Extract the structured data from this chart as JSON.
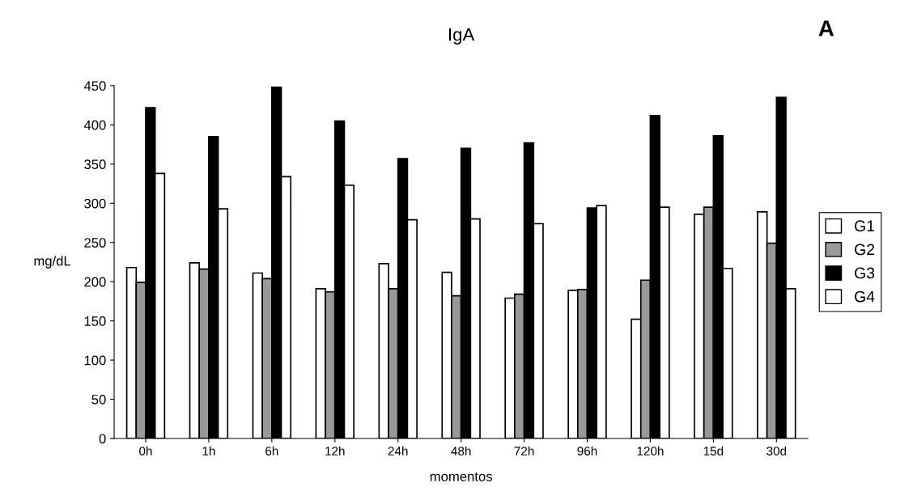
{
  "chart_data": {
    "type": "bar",
    "title": "IgA",
    "xlabel": "momentos",
    "ylabel": "mg/dL",
    "annotations": [
      "A"
    ],
    "categories": [
      "0h",
      "1h",
      "6h",
      "12h",
      "24h",
      "48h",
      "72h",
      "96h",
      "120h",
      "15d",
      "30d"
    ],
    "series": [
      {
        "name": "G1",
        "color": "#ffffff",
        "values": [
          218,
          224,
          211,
          191,
          223,
          212,
          179,
          189,
          152,
          286,
          289
        ]
      },
      {
        "name": "G2",
        "color": "#999999",
        "values": [
          199,
          216,
          204,
          187,
          191,
          182,
          184,
          190,
          202,
          295,
          249
        ]
      },
      {
        "name": "G3",
        "color": "#000000",
        "values": [
          422,
          385,
          448,
          405,
          357,
          370,
          377,
          294,
          412,
          386,
          435
        ]
      },
      {
        "name": "G4",
        "color": "#ffffff",
        "values": [
          338,
          293,
          334,
          323,
          279,
          280,
          274,
          297,
          295,
          217,
          191
        ]
      }
    ],
    "ylim": [
      0,
      450
    ],
    "yticks": [
      0,
      50,
      100,
      150,
      200,
      250,
      300,
      350,
      400,
      450
    ],
    "grid": false,
    "legend": "right"
  }
}
